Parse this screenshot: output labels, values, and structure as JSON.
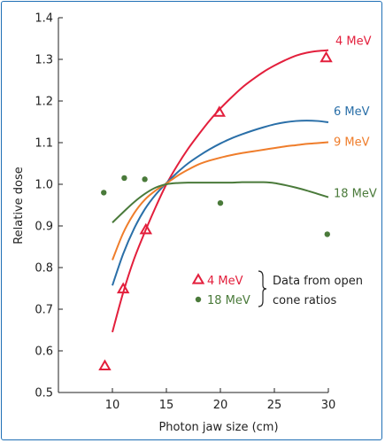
{
  "chart_data": {
    "type": "line",
    "title": "",
    "xlabel": "Photon jaw size (cm)",
    "ylabel": "Relative dose",
    "xlim": [
      5,
      30
    ],
    "ylim": [
      0.5,
      1.4
    ],
    "x_ticks": [
      10,
      15,
      20,
      25,
      30
    ],
    "y_ticks": [
      0.5,
      0.6,
      0.7,
      0.8,
      0.9,
      1.0,
      1.1,
      1.2,
      1.3,
      1.4
    ],
    "grid": false,
    "series": [
      {
        "name": "4 MeV",
        "color": "#e31f3c",
        "x": [
          10,
          11,
          12,
          13,
          14,
          15,
          16,
          17,
          18,
          19,
          20,
          21,
          22,
          23,
          24,
          25,
          26,
          27,
          28,
          29,
          30
        ],
        "y": [
          0.645,
          0.74,
          0.82,
          0.885,
          0.945,
          1.0,
          1.045,
          1.085,
          1.12,
          1.153,
          1.182,
          1.208,
          1.232,
          1.252,
          1.27,
          1.285,
          1.298,
          1.309,
          1.316,
          1.32,
          1.322
        ]
      },
      {
        "name": "6 MeV",
        "color": "#2a6fa8",
        "x": [
          10,
          11,
          12,
          13,
          14,
          15,
          16,
          17,
          18,
          19,
          20,
          21,
          22,
          23,
          24,
          25,
          26,
          27,
          28,
          29,
          30
        ],
        "y": [
          0.757,
          0.833,
          0.893,
          0.94,
          0.975,
          1.003,
          1.028,
          1.05,
          1.068,
          1.084,
          1.098,
          1.11,
          1.12,
          1.129,
          1.137,
          1.144,
          1.149,
          1.152,
          1.153,
          1.152,
          1.149
        ]
      },
      {
        "name": "9 MeV",
        "color": "#ef7d2b",
        "x": [
          10,
          11,
          12,
          13,
          14,
          15,
          16,
          17,
          18,
          19,
          20,
          21,
          22,
          23,
          24,
          25,
          26,
          27,
          28,
          29,
          30
        ],
        "y": [
          0.818,
          0.883,
          0.93,
          0.963,
          0.985,
          1.002,
          1.02,
          1.035,
          1.048,
          1.057,
          1.064,
          1.07,
          1.075,
          1.079,
          1.083,
          1.087,
          1.091,
          1.094,
          1.097,
          1.099,
          1.101
        ]
      },
      {
        "name": "18 MeV",
        "color": "#4a7a3a",
        "x": [
          10,
          11,
          12,
          13,
          14,
          15,
          16,
          17,
          18,
          19,
          20,
          21,
          22,
          23,
          24,
          25,
          26,
          27,
          28,
          29,
          30
        ],
        "y": [
          0.908,
          0.933,
          0.957,
          0.977,
          0.992,
          1.0,
          1.003,
          1.004,
          1.004,
          1.004,
          1.004,
          1.004,
          1.005,
          1.005,
          1.005,
          1.003,
          0.998,
          0.992,
          0.985,
          0.977,
          0.969
        ]
      }
    ],
    "markers": [
      {
        "name": "4 MeV",
        "shape": "triangle",
        "color": "#e31f3c",
        "x": [
          9.3,
          11.0,
          13.1,
          19.9,
          29.8
        ],
        "y": [
          0.563,
          0.748,
          0.89,
          1.172,
          1.303
        ]
      },
      {
        "name": "18 MeV",
        "shape": "dot",
        "color": "#4a7a3a",
        "x": [
          9.2,
          11.1,
          13.0,
          20.0,
          29.9
        ],
        "y": [
          0.98,
          1.015,
          1.012,
          0.955,
          0.88
        ]
      }
    ],
    "legend": {
      "placement": "bottom-right",
      "items": [
        {
          "label": "4 MeV",
          "shape": "triangle",
          "color": "#e31f3c"
        },
        {
          "label": "18 MeV",
          "shape": "dot",
          "color": "#4a7a3a"
        }
      ],
      "note": "Data from open cone ratios"
    }
  }
}
